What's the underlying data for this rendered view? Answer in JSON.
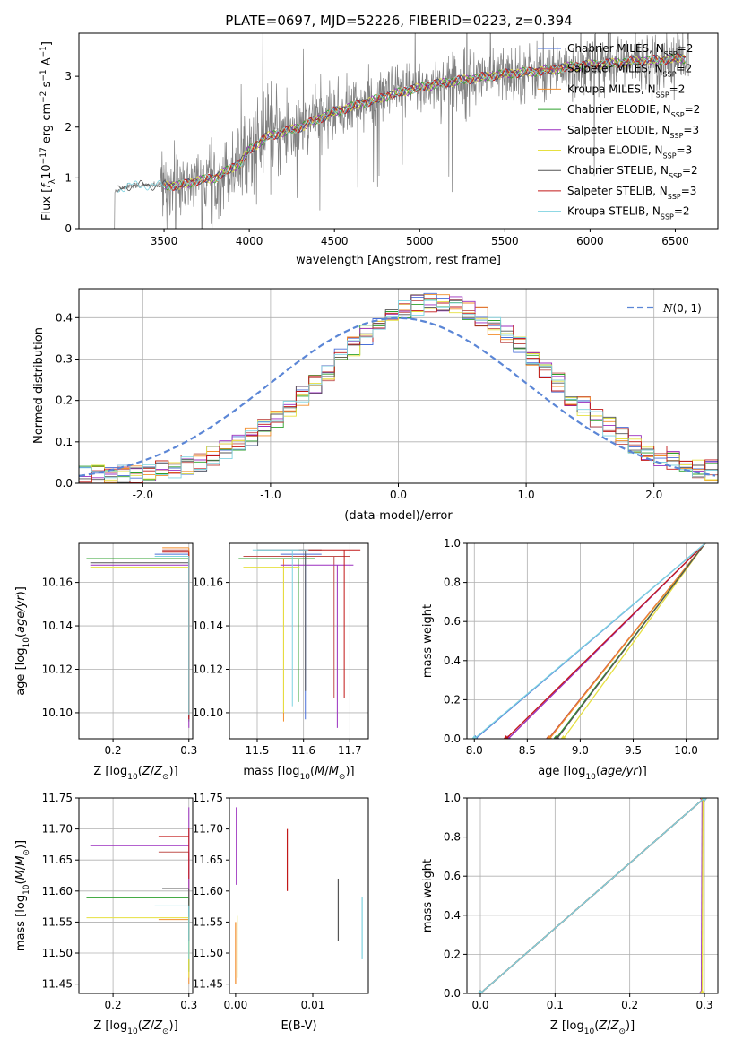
{
  "title": "PLATE=0697, MJD=52226, FIBERID=0223, z=0.394",
  "palette": [
    "#4a6fd8",
    "#c0504d",
    "#f28e2b",
    "#2ca02c",
    "#9b2fbf",
    "#e6e040",
    "#555555",
    "#c21818",
    "#7fd3e0"
  ],
  "chart_data": [
    {
      "id": "spectrum",
      "type": "line",
      "xlabel": "wavelength [Angstrom, rest frame]",
      "ylabel": "Flux [f_λ 10^-17 erg cm^-2 s^-1 A^-1]",
      "xlim": [
        3000,
        6750
      ],
      "ylim": [
        0,
        3.85
      ],
      "xticks": [
        3500,
        4000,
        4500,
        5000,
        5500,
        6000,
        6500
      ],
      "yticks": [
        0,
        1,
        2,
        3
      ],
      "grid": false,
      "legend_position": "top-right",
      "legend": [
        {
          "base": "Chabrier MILES, N",
          "sub": "SSP",
          "rest": "=2"
        },
        {
          "base": "Salpeter MILES, N",
          "sub": "SSP",
          "rest": "=2"
        },
        {
          "base": "Kroupa MILES, N",
          "sub": "SSP",
          "rest": "=2"
        },
        {
          "base": "Chabrier ELODIE, N",
          "sub": "SSP",
          "rest": "=2"
        },
        {
          "base": "Salpeter ELODIE, N",
          "sub": "SSP",
          "rest": "=3"
        },
        {
          "base": "Kroupa ELODIE, N",
          "sub": "SSP",
          "rest": "=3"
        },
        {
          "base": "Chabrier STELIB, N",
          "sub": "SSP",
          "rest": "=2"
        },
        {
          "base": "Salpeter STELIB, N",
          "sub": "SSP",
          "rest": "=3"
        },
        {
          "base": "Kroupa STELIB, N",
          "sub": "SSP",
          "rest": "=2"
        }
      ],
      "data_color": "#808080",
      "continuum": {
        "x": [
          3200,
          3250,
          3300,
          3400,
          3500,
          3600,
          3700,
          3800,
          3900,
          3950,
          4000,
          4100,
          4300,
          4500,
          4700,
          4900,
          5100,
          5300,
          5500,
          5700,
          5900,
          6100,
          6300,
          6500,
          6580
        ],
        "y": [
          0.7,
          0.8,
          0.85,
          0.85,
          0.85,
          0.85,
          0.95,
          1.0,
          1.2,
          1.3,
          1.55,
          1.8,
          2.0,
          2.3,
          2.5,
          2.7,
          2.85,
          2.95,
          3.05,
          3.1,
          3.2,
          3.25,
          3.3,
          3.35,
          3.35
        ]
      }
    },
    {
      "id": "residuals",
      "type": "line",
      "xlabel": "(data-model)/error",
      "ylabel": "Normed distribution",
      "xlim": [
        -2.5,
        2.5
      ],
      "ylim": [
        0,
        0.47
      ],
      "xticks": [
        -2,
        -1,
        0,
        1,
        2
      ],
      "yticks": [
        0.0,
        0.1,
        0.2,
        0.3,
        0.4
      ],
      "grid": true,
      "legend_position": "top-right",
      "legend_label": "N(0, 1)",
      "gaussian": {
        "mean": 0,
        "sigma": 1,
        "color": "#5b86d6"
      },
      "histogram_bins": {
        "start": -2.5,
        "width": 0.1,
        "count": 50
      }
    },
    {
      "id": "age-vs-Z",
      "type": "line",
      "xlabel": "Z [log10(Z/Z⊙)]",
      "ylabel": "age  [log10(age/yr)]",
      "xlim": [
        0.155,
        0.305
      ],
      "ylim": [
        10.088,
        10.178
      ],
      "xticks": [
        0.2,
        0.3
      ],
      "yticks": [
        10.1,
        10.12,
        10.14,
        10.16
      ],
      "grid": true,
      "segments": [
        {
          "series": 0,
          "h": [
            0.255,
            0.3,
            10.173
          ],
          "v": [
            0.3,
            10.1,
            10.173
          ]
        },
        {
          "series": 1,
          "h": [
            0.265,
            0.3,
            10.175
          ],
          "v": [
            0.3,
            10.098,
            10.175
          ]
        },
        {
          "series": 2,
          "h": [
            0.265,
            0.3,
            10.176
          ],
          "v": [
            0.3,
            10.097,
            10.176
          ]
        },
        {
          "series": 3,
          "h": [
            0.165,
            0.3,
            10.171
          ],
          "v": [
            0.3,
            10.096,
            10.171
          ]
        },
        {
          "series": 4,
          "h": [
            0.17,
            0.3,
            10.168
          ],
          "v": [
            0.3,
            10.093,
            10.168
          ]
        },
        {
          "series": 5,
          "h": [
            0.17,
            0.3,
            10.167
          ],
          "v": [
            0.3,
            10.099,
            10.167
          ]
        },
        {
          "series": 6,
          "h": [
            0.17,
            0.3,
            10.169
          ],
          "v": [
            0.3,
            10.098,
            10.169
          ]
        },
        {
          "series": 7,
          "h": [
            0.265,
            0.3,
            10.174
          ],
          "v": [
            0.3,
            10.097,
            10.174
          ]
        },
        {
          "series": 8,
          "h": [
            0.255,
            0.3,
            10.172
          ],
          "v": [
            0.3,
            10.099,
            10.172
          ]
        }
      ]
    },
    {
      "id": "age-vs-mass",
      "type": "line",
      "xlabel": "mass [log10(M/M⊙)]",
      "ylabel": "",
      "xlim": [
        11.44,
        11.74
      ],
      "ylim": [
        10.088,
        10.178
      ],
      "xticks": [
        11.5,
        11.6,
        11.7
      ],
      "yticks": [
        10.1,
        10.12,
        10.14,
        10.16
      ],
      "grid": true,
      "segments": [
        {
          "series": 0,
          "x": 11.604,
          "ystart": 10.097,
          "xstart": 11.55,
          "ytop": 10.173
        },
        {
          "series": 1,
          "x": 11.666,
          "ystart": 10.107,
          "xstart": 11.47,
          "ytop": 10.172
        },
        {
          "series": 2,
          "x": 11.557,
          "ystart": 10.096,
          "xstart": 11.47,
          "ytop": 10.171
        },
        {
          "series": 3,
          "x": 11.589,
          "ystart": 10.105,
          "xstart": 11.46,
          "ytop": 10.171
        },
        {
          "series": 4,
          "x": 11.673,
          "ystart": 10.093,
          "xstart": 11.55,
          "ytop": 10.168
        },
        {
          "series": 5,
          "x": 11.557,
          "ystart": 10.1,
          "xstart": 11.47,
          "ytop": 10.167
        },
        {
          "series": 6,
          "x": 11.604,
          "ystart": 10.11,
          "xstart": 11.5,
          "ytop": 10.175
        },
        {
          "series": 7,
          "x": 11.688,
          "ystart": 10.107,
          "xstart": 11.59,
          "ytop": 10.175
        },
        {
          "series": 8,
          "x": 11.576,
          "ystart": 10.103,
          "xstart": 11.49,
          "ytop": 10.175
        }
      ]
    },
    {
      "id": "weight-vs-age",
      "type": "line",
      "xlabel": "age  [log10(age/yr)]",
      "ylabel": "mass weight",
      "xlim": [
        7.93,
        10.3
      ],
      "ylim": [
        0.0,
        1.0
      ],
      "xticks": [
        8.0,
        8.5,
        9.0,
        9.5,
        10.0
      ],
      "yticks": [
        0.0,
        0.2,
        0.4,
        0.6,
        0.8,
        1.0
      ],
      "grid": true,
      "series_points": [
        {
          "series": 0,
          "x": [
            8.01,
            10.18
          ],
          "y": [
            0,
            1
          ]
        },
        {
          "series": 1,
          "x": [
            8.7,
            10.18
          ],
          "y": [
            0,
            1
          ]
        },
        {
          "series": 2,
          "x": [
            8.71,
            10.18
          ],
          "y": [
            0,
            1
          ]
        },
        {
          "series": 3,
          "x": [
            8.77,
            10.18
          ],
          "y": [
            0,
            1
          ]
        },
        {
          "series": 4,
          "x": [
            8.32,
            10.18
          ],
          "y": [
            0,
            1
          ]
        },
        {
          "series": 5,
          "x": [
            8.84,
            10.18
          ],
          "y": [
            0,
            1
          ]
        },
        {
          "series": 6,
          "x": [
            8.78,
            10.18
          ],
          "y": [
            0,
            1
          ]
        },
        {
          "series": 7,
          "x": [
            8.3,
            10.18
          ],
          "y": [
            0,
            1
          ]
        },
        {
          "series": 8,
          "x": [
            8.0,
            10.18
          ],
          "y": [
            0,
            1
          ]
        }
      ]
    },
    {
      "id": "mass-vs-Z",
      "type": "line",
      "xlabel": "Z [log10(Z/Z⊙)]",
      "ylabel": "mass [log10(M/M⊙)]",
      "xlim": [
        0.155,
        0.305
      ],
      "ylim": [
        11.435,
        11.75
      ],
      "xticks": [
        0.2,
        0.3
      ],
      "yticks": [
        11.45,
        11.5,
        11.55,
        11.6,
        11.65,
        11.7,
        11.75
      ],
      "grid": true,
      "segments": [
        {
          "series": 0,
          "h": [
            0.265,
            0.3,
            11.604
          ],
          "v": [
            0.3,
            11.52,
            11.604
          ]
        },
        {
          "series": 1,
          "h": [
            0.26,
            0.3,
            11.663
          ],
          "v": [
            0.3,
            11.57,
            11.663
          ]
        },
        {
          "series": 2,
          "h": [
            0.26,
            0.3,
            11.554
          ],
          "v": [
            0.3,
            11.45,
            11.554
          ]
        },
        {
          "series": 3,
          "h": [
            0.165,
            0.3,
            11.589
          ],
          "v": [
            0.3,
            11.47,
            11.589
          ]
        },
        {
          "series": 4,
          "h": [
            0.17,
            0.3,
            11.673
          ],
          "v": [
            0.3,
            11.6,
            11.735
          ]
        },
        {
          "series": 5,
          "h": [
            0.165,
            0.3,
            11.557
          ],
          "v": [
            0.3,
            11.46,
            11.557
          ]
        },
        {
          "series": 6,
          "h": [
            0.265,
            0.3,
            11.604
          ],
          "v": [
            0.3,
            11.52,
            11.604
          ]
        },
        {
          "series": 7,
          "h": [
            0.26,
            0.3,
            11.688
          ],
          "v": [
            0.3,
            11.62,
            11.702
          ]
        },
        {
          "series": 8,
          "h": [
            0.255,
            0.3,
            11.576
          ],
          "v": [
            0.3,
            11.49,
            11.576
          ]
        }
      ]
    },
    {
      "id": "mass-vs-EBV",
      "type": "line",
      "xlabel": "E(B-V)",
      "ylabel": "",
      "xlim": [
        -0.0008,
        0.0172
      ],
      "ylim": [
        11.435,
        11.75
      ],
      "xticks": [
        0.0,
        0.01
      ],
      "yticks": [
        11.45,
        11.5,
        11.55,
        11.6,
        11.65,
        11.7,
        11.75
      ],
      "grid": false,
      "segments": [
        {
          "series": 4,
          "x": 0.0001,
          "y": [
            11.61,
            11.735
          ]
        },
        {
          "series": 2,
          "x": 0.0,
          "y": [
            11.45,
            11.55
          ]
        },
        {
          "series": 5,
          "x": 0.0002,
          "y": [
            11.46,
            11.56
          ]
        },
        {
          "series": 7,
          "x": 0.0067,
          "y": [
            11.6,
            11.7
          ]
        },
        {
          "series": 6,
          "x": 0.0133,
          "y": [
            11.52,
            11.62
          ]
        },
        {
          "series": 8,
          "x": 0.0164,
          "y": [
            11.49,
            11.59
          ]
        }
      ]
    },
    {
      "id": "weight-vs-Z",
      "type": "line",
      "xlabel": "Z [log10(Z/Z⊙)]",
      "ylabel": "mass weight",
      "xlim": [
        -0.018,
        0.318
      ],
      "ylim": [
        0.0,
        1.0
      ],
      "xticks": [
        0.0,
        0.1,
        0.2,
        0.3
      ],
      "yticks": [
        0.0,
        0.2,
        0.4,
        0.6,
        0.8,
        1.0
      ],
      "grid": true,
      "series_points": [
        {
          "series": 0,
          "x": [
            0.0,
            0.3
          ],
          "y": [
            0,
            1
          ]
        },
        {
          "series": 1,
          "x": [
            0.0,
            0.3
          ],
          "y": [
            0,
            1
          ]
        },
        {
          "series": 2,
          "x": [
            0.0,
            0.3
          ],
          "y": [
            0,
            1
          ]
        },
        {
          "series": 3,
          "x": [
            0.0,
            0.3
          ],
          "y": [
            0,
            1
          ]
        },
        {
          "series": 4,
          "x": [
            0.296,
            0.297
          ],
          "y": [
            0,
            1
          ]
        },
        {
          "series": 5,
          "x": [
            0.297,
            0.298
          ],
          "y": [
            0,
            1
          ]
        },
        {
          "series": 6,
          "x": [
            0.0,
            0.3
          ],
          "y": [
            0,
            1
          ]
        },
        {
          "series": 7,
          "x": [
            0.0,
            0.3
          ],
          "y": [
            0,
            1
          ]
        },
        {
          "series": 8,
          "x": [
            0.0,
            0.3
          ],
          "y": [
            0,
            1
          ]
        }
      ]
    }
  ]
}
